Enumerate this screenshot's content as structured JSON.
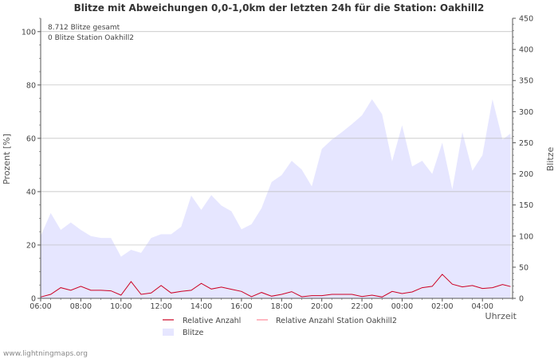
{
  "chart_data": {
    "type": "area",
    "title": "Blitze mit Abweichungen 0,0-1,0km der letzten 24h für die Station: Oakhill2",
    "annotations": [
      "8.712 Blitze gesamt",
      "0 Blitze Station Oakhill2"
    ],
    "ylabel_left": "Prozent   [%]",
    "ylabel_right": "Blitze",
    "xlabel": "Uhrzeit",
    "ylim_left": [
      0,
      105
    ],
    "ylim_right": [
      0,
      450
    ],
    "yticks_left": [
      0,
      20,
      40,
      60,
      80,
      100
    ],
    "yticks_right": [
      0,
      50,
      100,
      150,
      200,
      250,
      300,
      350,
      400,
      450
    ],
    "x_range_hours": [
      6,
      29.5
    ],
    "x_tick_labels": [
      "06:00",
      "08:00",
      "10:00",
      "12:00",
      "14:00",
      "16:00",
      "18:00",
      "20:00",
      "22:00",
      "00:00",
      "02:00",
      "04:00"
    ],
    "x_tick_hours": [
      6,
      8,
      10,
      12,
      14,
      16,
      18,
      20,
      22,
      24,
      26,
      28
    ],
    "grid": true,
    "legend": [
      "Relative Anzahl",
      "Relative Anzahl Station Oakhill2",
      "Blitze"
    ],
    "legend_position": "bottom-center",
    "colors": {
      "relative": "#cc0022",
      "station": "#ff8899",
      "blitze_fill": "#e6e6ff",
      "grid": "#bbbbbb"
    },
    "x": [
      6.0,
      6.5,
      7.0,
      7.5,
      8.0,
      8.5,
      9.0,
      9.5,
      10.0,
      10.5,
      11.0,
      11.5,
      12.0,
      12.5,
      13.0,
      13.5,
      14.0,
      14.5,
      15.0,
      15.5,
      16.0,
      16.5,
      17.0,
      17.5,
      18.0,
      18.5,
      19.0,
      19.5,
      20.0,
      20.5,
      21.0,
      21.5,
      22.0,
      22.5,
      23.0,
      23.5,
      24.0,
      24.5,
      25.0,
      25.5,
      26.0,
      26.5,
      27.0,
      27.5,
      28.0,
      28.5,
      29.0,
      29.4
    ],
    "series": [
      {
        "name": "Blitze",
        "axis": "right",
        "values": [
          100,
          137,
          110,
          122,
          110,
          100,
          97,
          97,
          67,
          78,
          73,
          97,
          103,
          103,
          115,
          165,
          142,
          166,
          149,
          140,
          111,
          119,
          145,
          187,
          198,
          221,
          207,
          180,
          240,
          255,
          267,
          280,
          294,
          320,
          296,
          220,
          278,
          212,
          221,
          200,
          250,
          175,
          267,
          205,
          230,
          320,
          255,
          265
        ]
      },
      {
        "name": "Relative Anzahl",
        "axis": "left",
        "values": [
          0.5,
          1.5,
          4,
          3,
          4.5,
          3,
          3,
          2.8,
          1.2,
          6.3,
          1.5,
          2,
          4.8,
          2,
          2.6,
          3,
          5.6,
          3.5,
          4.2,
          3.4,
          2.6,
          0.6,
          2.2,
          0.8,
          1.5,
          2.5,
          0.6,
          1,
          1,
          1.5,
          1.5,
          1.5,
          0.7,
          1.2,
          0.5,
          2.6,
          1.8,
          2.4,
          4,
          4.5,
          9,
          5.3,
          4.3,
          4.8,
          3.7,
          4,
          5.2,
          4.4
        ]
      },
      {
        "name": "Relative Anzahl Station Oakhill2",
        "axis": "left",
        "values": [
          0,
          0,
          0,
          0,
          0,
          0,
          0,
          0,
          0,
          0,
          0,
          0,
          0,
          0,
          0,
          0,
          0,
          0,
          0,
          0,
          0,
          0,
          0,
          0,
          0,
          0,
          0,
          0,
          0,
          0,
          0,
          0,
          0,
          0,
          0,
          0,
          0,
          0,
          0,
          0,
          0,
          0,
          0,
          0,
          0,
          0,
          0,
          0
        ]
      }
    ]
  },
  "footer": {
    "credit": "www.lightningmaps.org"
  }
}
